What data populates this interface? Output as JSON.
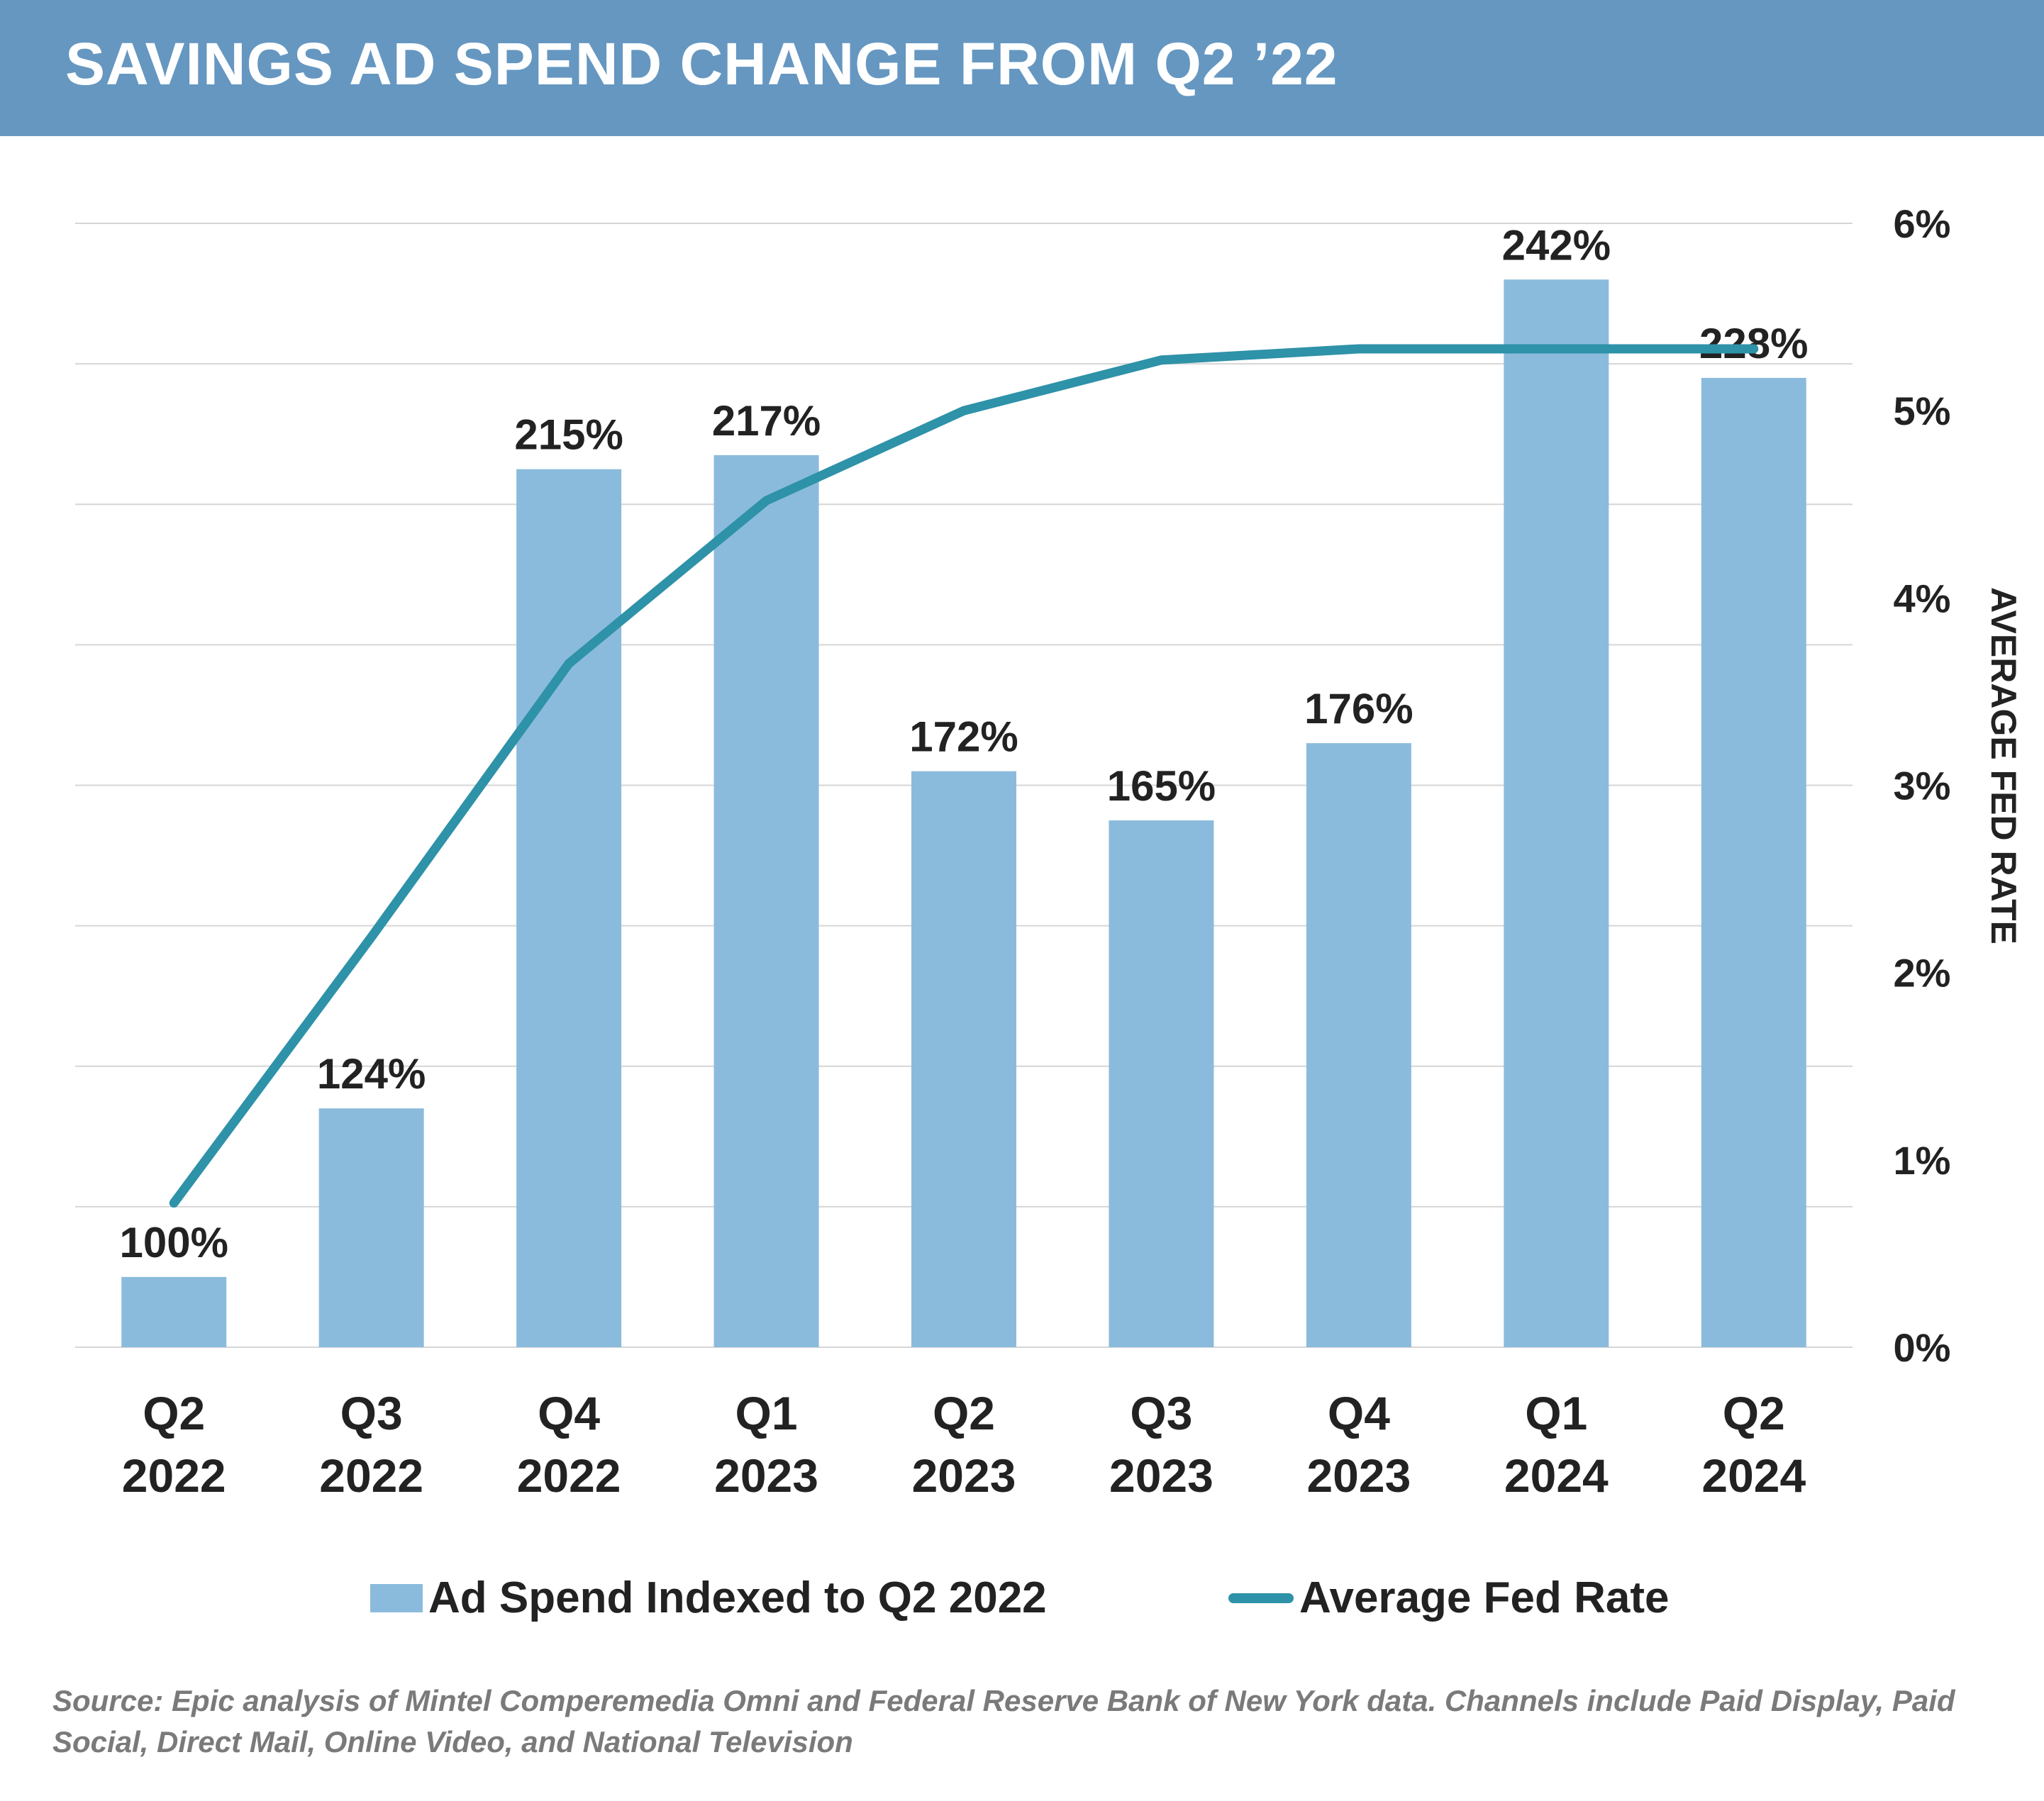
{
  "header": {
    "title": "SAVINGS AD SPEND CHANGE FROM Q2 ’22"
  },
  "chart_data": {
    "type": "bar",
    "categories": [
      [
        "Q2",
        "2022"
      ],
      [
        "Q3",
        "2022"
      ],
      [
        "Q4",
        "2022"
      ],
      [
        "Q1",
        "2023"
      ],
      [
        "Q2",
        "2023"
      ],
      [
        "Q3",
        "2023"
      ],
      [
        "Q4",
        "2023"
      ],
      [
        "Q1",
        "2024"
      ],
      [
        "Q2",
        "2024"
      ]
    ],
    "series": [
      {
        "name": "Ad Spend Indexed to Q2 2022",
        "type": "bar",
        "axis": "left",
        "values": [
          100,
          124,
          215,
          217,
          172,
          165,
          176,
          242,
          228
        ],
        "labels": [
          "100%",
          "124%",
          "215%",
          "217%",
          "172%",
          "165%",
          "176%",
          "242%",
          "228%"
        ],
        "color": "#8bbbdc"
      },
      {
        "name": "Average Fed Rate",
        "type": "line",
        "axis": "right",
        "values": [
          0.77,
          2.19,
          3.65,
          4.52,
          5.0,
          5.27,
          5.33,
          5.33,
          5.33
        ],
        "color": "#2e92a8"
      }
    ],
    "left_axis": {
      "range": [
        90,
        250
      ],
      "ticks_visible": false
    },
    "right_axis": {
      "label": "AVERAGE FED RATE",
      "range": [
        0,
        6
      ],
      "ticks": [
        0,
        1,
        2,
        3,
        4,
        5,
        6
      ],
      "tick_labels": [
        "0%",
        "1%",
        "2%",
        "3%",
        "4%",
        "5%",
        "6%"
      ]
    },
    "gridlines": true,
    "gridline_count": 8,
    "legend_position": "bottom"
  },
  "footer": {
    "source": "Source: Epic analysis of Mintel Comperemedia Omni and Federal Reserve Bank of New York data. Channels include Paid Display, Paid Social, Direct Mail, Online Video, and National Television"
  }
}
